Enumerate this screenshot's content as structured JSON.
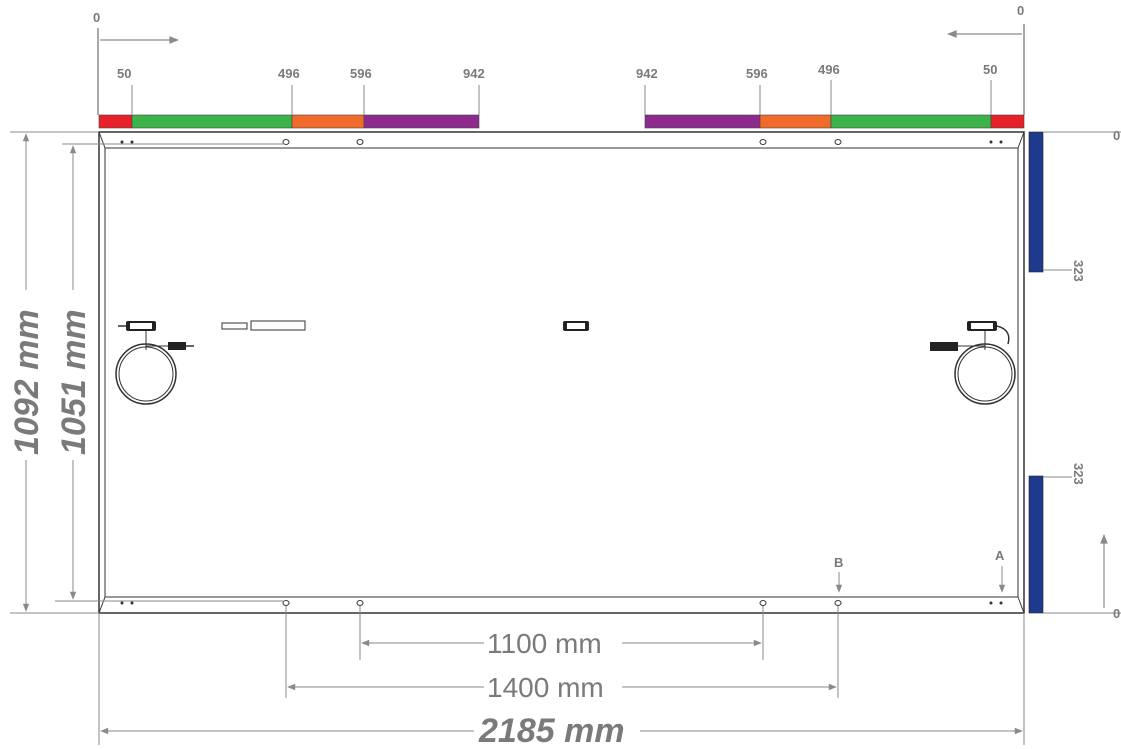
{
  "origin_labels": {
    "left": "0",
    "right": "0",
    "right_side_top": "0",
    "right_side_bottom": "0"
  },
  "left_scale": {
    "ticks": [
      "50",
      "496",
      "596",
      "942"
    ]
  },
  "right_scale": {
    "ticks": [
      "942",
      "596",
      "496",
      "50"
    ]
  },
  "side_scale": {
    "top_value": "323",
    "bottom_value": "323"
  },
  "markers": {
    "a": "A",
    "b": "B"
  },
  "dimensions": {
    "height_outer": "1092 mm",
    "height_inner": "1051 mm",
    "width_total": "2185 mm",
    "span_1100": "1100 mm",
    "span_1400": "1400 mm"
  },
  "colors": {
    "zone_red": "#e8202a",
    "zone_green": "#3cb44a",
    "zone_orange": "#f06a2a",
    "zone_purple": "#8e2a8e",
    "clamp_blue": "#1f3a8c",
    "dimension_gray": "#8a8a8a"
  }
}
